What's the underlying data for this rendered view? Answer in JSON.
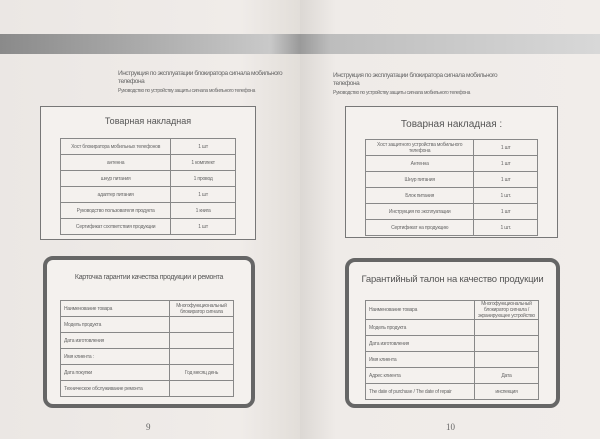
{
  "left_page": {
    "header_title": "Инструкция по эксплуатации блокиратора сигнала мобильного телефона",
    "header_subtitle": "Руководство по устройству защиты сигнала мобильного телефона",
    "invoice": {
      "title": "Товарная накладная",
      "rows": [
        [
          "Хост блокиратора мобильных телефонов",
          "1 шт"
        ],
        [
          "антенна",
          "1 комплект"
        ],
        [
          "шнур питания",
          "1 провод"
        ],
        [
          "адаптер питания",
          "1 шт"
        ],
        [
          "Руководство пользователя продукта",
          "1 книга"
        ],
        [
          "Сертификат соответствия продукции",
          "1 шт"
        ]
      ]
    },
    "warranty": {
      "title": "Карточка гарантии качества продукции и ремонта",
      "rows": [
        [
          "Наименование товара",
          "Многофункциональный блокиратор сигнала"
        ],
        [
          "Модель продукта",
          ""
        ],
        [
          "Дата изготовления",
          ""
        ],
        [
          "Имя клиента :",
          ""
        ],
        [
          "Дата покупки",
          "Год месяц день"
        ],
        [
          "Техническое обслуживание ремонта",
          ""
        ]
      ]
    },
    "page_number": "9"
  },
  "right_page": {
    "header_title": "Инструкция по эксплуатации блокиратора сигнала мобильного телефона",
    "header_subtitle": "Руководство по устройству защиты сигнала мобильного телефона",
    "invoice": {
      "title": "Товарная накладная :",
      "rows": [
        [
          "Хост защитного устройства мобильного телефона",
          "1 шт"
        ],
        [
          "Антенна",
          "1 шт"
        ],
        [
          "Шнур питания",
          "1 шт"
        ],
        [
          "Блок питания",
          "1 шт."
        ],
        [
          "Инструкция по эксплуатации",
          "1 шт"
        ],
        [
          "Сертификат на продукцию",
          "1 шт."
        ]
      ]
    },
    "warranty": {
      "title": "Гарантийный талон на качество продукции",
      "rows": [
        [
          "Наименование товара",
          "Многофункциональный блокиратор сигнала / экранирующее устройство"
        ],
        [
          "Модель продукта",
          ""
        ],
        [
          "Дата изготовления",
          ""
        ],
        [
          "Имя клиента",
          ""
        ],
        [
          "Адрес клиента",
          "Дата"
        ],
        [
          "The date of purchase / The date of repair",
          "инспекция"
        ]
      ]
    },
    "page_number": "10"
  }
}
